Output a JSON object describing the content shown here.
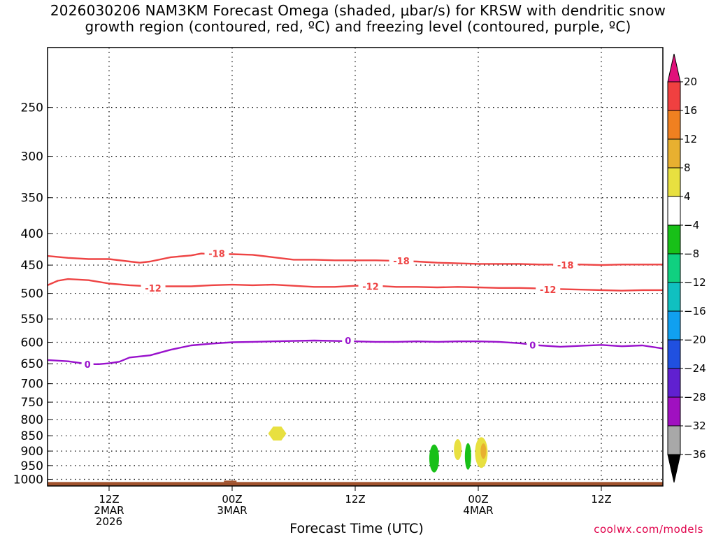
{
  "title": {
    "line1": "2026030206 NAM3KM Forecast Omega (shaded, μbar/s) for KRSW with dendritic snow",
    "line2": "growth region (contoured, red, ºC) and freezing level (contoured, purple, ºC)"
  },
  "xlabel": "Forecast Time (UTC)",
  "credit": "coolwx.com/models",
  "chart_data": {
    "type": "contour",
    "title": "2026030206 NAM3KM Forecast Omega (shaded, μbar/s) for KRSW with dendritic snow growth region (contoured, red, ºC) and freezing level (contoured, purple, ºC)",
    "xlabel": "Forecast Time (UTC)",
    "ylabel": "",
    "y_scale": "log-pressure",
    "y_axis": {
      "reversed": true,
      "ylim": [
        1025,
        200
      ]
    },
    "x_axis": {
      "range_hours": [
        0,
        60
      ],
      "unit": "hours after 2026-03-02 06Z"
    },
    "y_ticks": [
      250,
      300,
      350,
      400,
      450,
      500,
      550,
      600,
      650,
      700,
      750,
      800,
      850,
      900,
      950,
      1000
    ],
    "x_ticks": [
      {
        "hour": 6,
        "lines": [
          "12Z",
          "2MAR",
          "2026"
        ]
      },
      {
        "hour": 18,
        "lines": [
          "00Z",
          "3MAR"
        ]
      },
      {
        "hour": 30,
        "lines": [
          "12Z"
        ]
      },
      {
        "hour": 42,
        "lines": [
          "00Z",
          "4MAR"
        ]
      },
      {
        "hour": 54,
        "lines": [
          "12Z"
        ]
      }
    ],
    "grid": true,
    "colorbar": {
      "ticks": [
        "20",
        "16",
        "12",
        "8",
        "4",
        "−4",
        "−8",
        "−12",
        "−16",
        "−20",
        "−24",
        "−28",
        "−32",
        "−36"
      ],
      "bins": [
        {
          "range": [
            20,
            16
          ],
          "color": "#f04040"
        },
        {
          "range": [
            16,
            12
          ],
          "color": "#f08020"
        },
        {
          "range": [
            12,
            8
          ],
          "color": "#e8b030"
        },
        {
          "range": [
            8,
            4
          ],
          "color": "#e8e040"
        },
        {
          "range": [
            4,
            -4
          ],
          "color": "#ffffff"
        },
        {
          "range": [
            -4,
            -8
          ],
          "color": "#18c018"
        },
        {
          "range": [
            -8,
            -12
          ],
          "color": "#10d080"
        },
        {
          "range": [
            -12,
            -16
          ],
          "color": "#10c0c0"
        },
        {
          "range": [
            -16,
            -20
          ],
          "color": "#10a0f0"
        },
        {
          "range": [
            -20,
            -24
          ],
          "color": "#2050e0"
        },
        {
          "range": [
            -24,
            -28
          ],
          "color": "#6020d0"
        },
        {
          "range": [
            -28,
            -32
          ],
          "color": "#a010c0"
        },
        {
          "range": [
            -32,
            -36
          ],
          "color": "#a8a8a8"
        }
      ],
      "over_color": "#e0107a",
      "under_color": "#000000"
    },
    "series": [
      {
        "name": "-18",
        "color": "#ee4444",
        "x": [
          0,
          2,
          4,
          6,
          8,
          9,
          10,
          12,
          14,
          15,
          16,
          18,
          20,
          22,
          24,
          26,
          28,
          30,
          32,
          34,
          36,
          38,
          40,
          42,
          44,
          46,
          48,
          50,
          52,
          54,
          56,
          58,
          60
        ],
        "y": [
          435,
          438,
          440,
          440,
          444,
          446,
          444,
          437,
          434,
          431,
          432,
          432,
          433,
          437,
          441,
          441,
          442,
          442,
          442,
          443,
          444,
          446,
          447,
          448,
          448,
          448,
          449,
          449,
          449,
          450,
          449,
          449,
          449
        ],
        "labels": [
          {
            "x": 16.5,
            "y": 431,
            "text": "-18"
          },
          {
            "x": 34.5,
            "y": 443,
            "text": "-18"
          },
          {
            "x": 50.5,
            "y": 450,
            "text": "-18"
          }
        ]
      },
      {
        "name": "-12",
        "color": "#ee4444",
        "x": [
          0,
          1,
          2,
          4,
          6,
          8,
          10,
          12,
          14,
          16,
          18,
          20,
          22,
          24,
          26,
          28,
          30,
          32,
          34,
          36,
          38,
          40,
          42,
          44,
          46,
          48,
          50,
          52,
          54,
          56,
          58,
          60
        ],
        "y": [
          485,
          477,
          474,
          476,
          482,
          485,
          487,
          487,
          487,
          485,
          484,
          485,
          484,
          486,
          488,
          488,
          486,
          486,
          488,
          488,
          489,
          488,
          489,
          490,
          490,
          491,
          492,
          493,
          494,
          495,
          494,
          494
        ],
        "labels": [
          {
            "x": 10.3,
            "y": 490,
            "text": "-12"
          },
          {
            "x": 31.5,
            "y": 487,
            "text": "-12"
          },
          {
            "x": 48.8,
            "y": 493,
            "text": "-12"
          }
        ]
      },
      {
        "name": "0",
        "color": "#9911cc",
        "x": [
          0,
          2,
          4,
          5,
          6,
          7,
          8,
          10,
          12,
          14,
          16,
          18,
          20,
          22,
          24,
          26,
          28,
          30,
          32,
          34,
          36,
          38,
          40,
          42,
          44,
          46,
          48,
          50,
          52,
          54,
          56,
          58,
          60
        ],
        "y": [
          641,
          644,
          651,
          651,
          649,
          645,
          635,
          630,
          617,
          607,
          603,
          600,
          599,
          598,
          597,
          596,
          597,
          598,
          599,
          599,
          598,
          599,
          598,
          598,
          599,
          602,
          607,
          610,
          608,
          606,
          609,
          607,
          614
        ],
        "labels": [
          {
            "x": 3.9,
            "y": 651,
            "text": "0"
          },
          {
            "x": 29.3,
            "y": 596,
            "text": "0"
          },
          {
            "x": 47.3,
            "y": 606,
            "text": "0"
          }
        ]
      }
    ],
    "omega_features": [
      {
        "hour": 22.4,
        "pressure": 843,
        "level": "4 to 8",
        "color": "#e8e040"
      },
      {
        "hour": 37.7,
        "pressure": 925,
        "level": "-4 to -8",
        "color": "#18c018"
      },
      {
        "hour": 40.0,
        "pressure": 895,
        "level": "4 to 8",
        "color": "#e8e040"
      },
      {
        "hour": 41.0,
        "pressure": 918,
        "level": "-4 to -8",
        "color": "#18c018"
      },
      {
        "hour": 42.3,
        "pressure": 905,
        "level": "4 to 8",
        "color": "#e8e040"
      },
      {
        "hour": 42.5,
        "pressure": 900,
        "level": "8 to 12",
        "color": "#e8b030"
      }
    ],
    "surface_color": "#a0522d"
  }
}
